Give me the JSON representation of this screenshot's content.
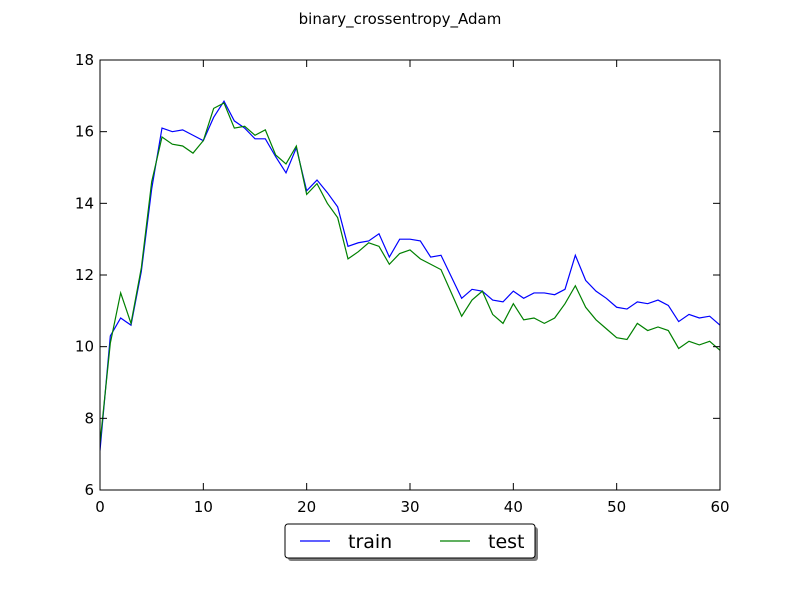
{
  "chart_data": {
    "type": "line",
    "title": "binary_crossentropy_Adam",
    "xlabel": "",
    "ylabel": "",
    "xlim": [
      0,
      60
    ],
    "ylim": [
      6,
      18
    ],
    "xticks": [
      0,
      10,
      20,
      30,
      40,
      50,
      60
    ],
    "yticks": [
      6,
      8,
      10,
      12,
      14,
      16,
      18
    ],
    "grid": false,
    "legend_position": "bottom-center",
    "x": [
      0,
      1,
      2,
      3,
      4,
      5,
      6,
      7,
      8,
      9,
      10,
      11,
      12,
      13,
      14,
      15,
      16,
      17,
      18,
      19,
      20,
      21,
      22,
      23,
      24,
      25,
      26,
      27,
      28,
      29,
      30,
      31,
      32,
      33,
      34,
      35,
      36,
      37,
      38,
      39,
      40,
      41,
      42,
      43,
      44,
      45,
      46,
      47,
      48,
      49,
      50,
      51,
      52,
      53,
      54,
      55,
      56,
      57,
      58,
      59,
      60
    ],
    "series": [
      {
        "name": "train",
        "color": "#0000ff",
        "values": [
          7.1,
          10.3,
          10.8,
          10.6,
          12.1,
          14.4,
          16.1,
          16.0,
          16.05,
          15.9,
          15.75,
          16.4,
          16.85,
          16.3,
          16.1,
          15.8,
          15.8,
          15.3,
          14.85,
          15.55,
          14.35,
          14.65,
          14.3,
          13.9,
          12.8,
          12.9,
          12.95,
          13.15,
          12.5,
          13.0,
          13.0,
          12.95,
          12.5,
          12.55,
          11.95,
          11.35,
          11.6,
          11.55,
          11.3,
          11.25,
          11.55,
          11.35,
          11.5,
          11.5,
          11.45,
          11.6,
          12.55,
          11.85,
          11.55,
          11.35,
          11.1,
          11.05,
          11.25,
          11.2,
          11.3,
          11.15,
          10.7,
          10.9,
          10.8,
          10.85,
          10.6
        ]
      },
      {
        "name": "test",
        "color": "#008000",
        "values": [
          7.3,
          10.1,
          11.5,
          10.65,
          12.2,
          14.6,
          15.85,
          15.65,
          15.6,
          15.4,
          15.75,
          16.65,
          16.8,
          16.1,
          16.15,
          15.9,
          16.05,
          15.35,
          15.1,
          15.6,
          14.25,
          14.55,
          14.0,
          13.6,
          12.45,
          12.65,
          12.9,
          12.8,
          12.3,
          12.6,
          12.7,
          12.45,
          12.3,
          12.15,
          11.5,
          10.85,
          11.3,
          11.55,
          10.9,
          10.65,
          11.2,
          10.75,
          10.8,
          10.65,
          10.8,
          11.2,
          11.7,
          11.1,
          10.75,
          10.5,
          10.25,
          10.2,
          10.65,
          10.45,
          10.55,
          10.45,
          9.95,
          10.15,
          10.05,
          10.15,
          9.9
        ]
      }
    ]
  }
}
